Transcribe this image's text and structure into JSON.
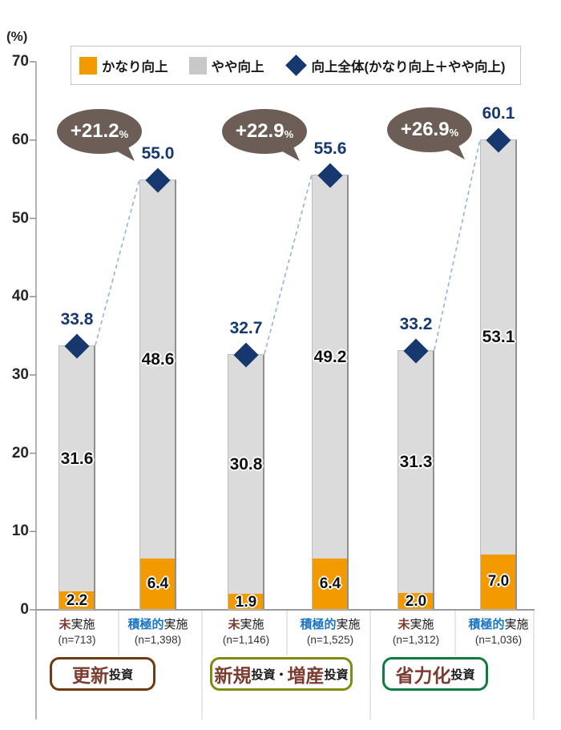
{
  "chart_data": {
    "type": "bar",
    "stacked": true,
    "ylabel": "(%)",
    "ylim": [
      0,
      70
    ],
    "yticks": [
      0,
      10,
      20,
      30,
      40,
      50,
      60,
      70
    ],
    "grid": false,
    "legend_position": "top",
    "legend": [
      {
        "label": "かなり向上",
        "marker": "square",
        "color": "#F39A00"
      },
      {
        "label": "やや向上",
        "marker": "square",
        "color": "#C8C8C8"
      },
      {
        "label": "向上全体(かなり向上＋やや向上)",
        "marker": "diamond",
        "color": "#17386E"
      }
    ],
    "series_names": [
      "かなり向上",
      "やや向上",
      "向上全体"
    ],
    "colors": {
      "kanari": "#F39A00",
      "yaya": "#DBDBDB",
      "diamond": "#17386E",
      "connector": "#8FB4E0",
      "bubble": "#6C5D57"
    },
    "groups": [
      {
        "label_parts": [
          {
            "text": "更新",
            "style": "large",
            "color": "#7C3C30"
          },
          {
            "text": "投資",
            "style": "small",
            "color": "#1a1a1a"
          }
        ],
        "box_color": "#6F3911",
        "delta": "+21.2",
        "delta_unit": "%",
        "bars": [
          {
            "category_main": "未",
            "category_rest": "実施",
            "category_color": "#7C3C30",
            "n": "(n=713)",
            "kanari": 2.2,
            "yaya": 31.6,
            "total": 33.8
          },
          {
            "category_main": "積極的",
            "category_rest": "実施",
            "category_color": "#1B74C4",
            "n": "(n=1,398)",
            "kanari": 6.4,
            "yaya": 48.6,
            "total": 55.0
          }
        ]
      },
      {
        "label_parts": [
          {
            "text": "新規",
            "style": "large",
            "color": "#7C3C30"
          },
          {
            "text": "投資",
            "style": "small",
            "color": "#1a1a1a"
          },
          {
            "text": "・",
            "style": "small",
            "color": "#1a1a1a"
          },
          {
            "text": "増産",
            "style": "large",
            "color": "#7C3C30"
          },
          {
            "text": "投資",
            "style": "small",
            "color": "#1a1a1a"
          }
        ],
        "box_color": "#808B0F",
        "delta": "+22.9",
        "delta_unit": "%",
        "bars": [
          {
            "category_main": "未",
            "category_rest": "実施",
            "category_color": "#7C3C30",
            "n": "(n=1,146)",
            "kanari": 1.9,
            "yaya": 30.8,
            "total": 32.7
          },
          {
            "category_main": "積極的",
            "category_rest": "実施",
            "category_color": "#1B74C4",
            "n": "(n=1,525)",
            "kanari": 6.4,
            "yaya": 49.2,
            "total": 55.6
          }
        ]
      },
      {
        "label_parts": [
          {
            "text": "省力化",
            "style": "large",
            "color": "#7C3C30"
          },
          {
            "text": "投資",
            "style": "small",
            "color": "#1a1a1a"
          }
        ],
        "box_color": "#0E7B41",
        "delta": "+26.9",
        "delta_unit": "%",
        "bars": [
          {
            "category_main": "未",
            "category_rest": "実施",
            "category_color": "#7C3C30",
            "n": "(n=1,312)",
            "kanari": 2.0,
            "yaya": 31.3,
            "total": 33.2
          },
          {
            "category_main": "積極的",
            "category_rest": "実施",
            "category_color": "#1B74C4",
            "n": "(n=1,036)",
            "kanari": 7.0,
            "yaya": 53.1,
            "total": 60.1
          }
        ]
      }
    ]
  }
}
